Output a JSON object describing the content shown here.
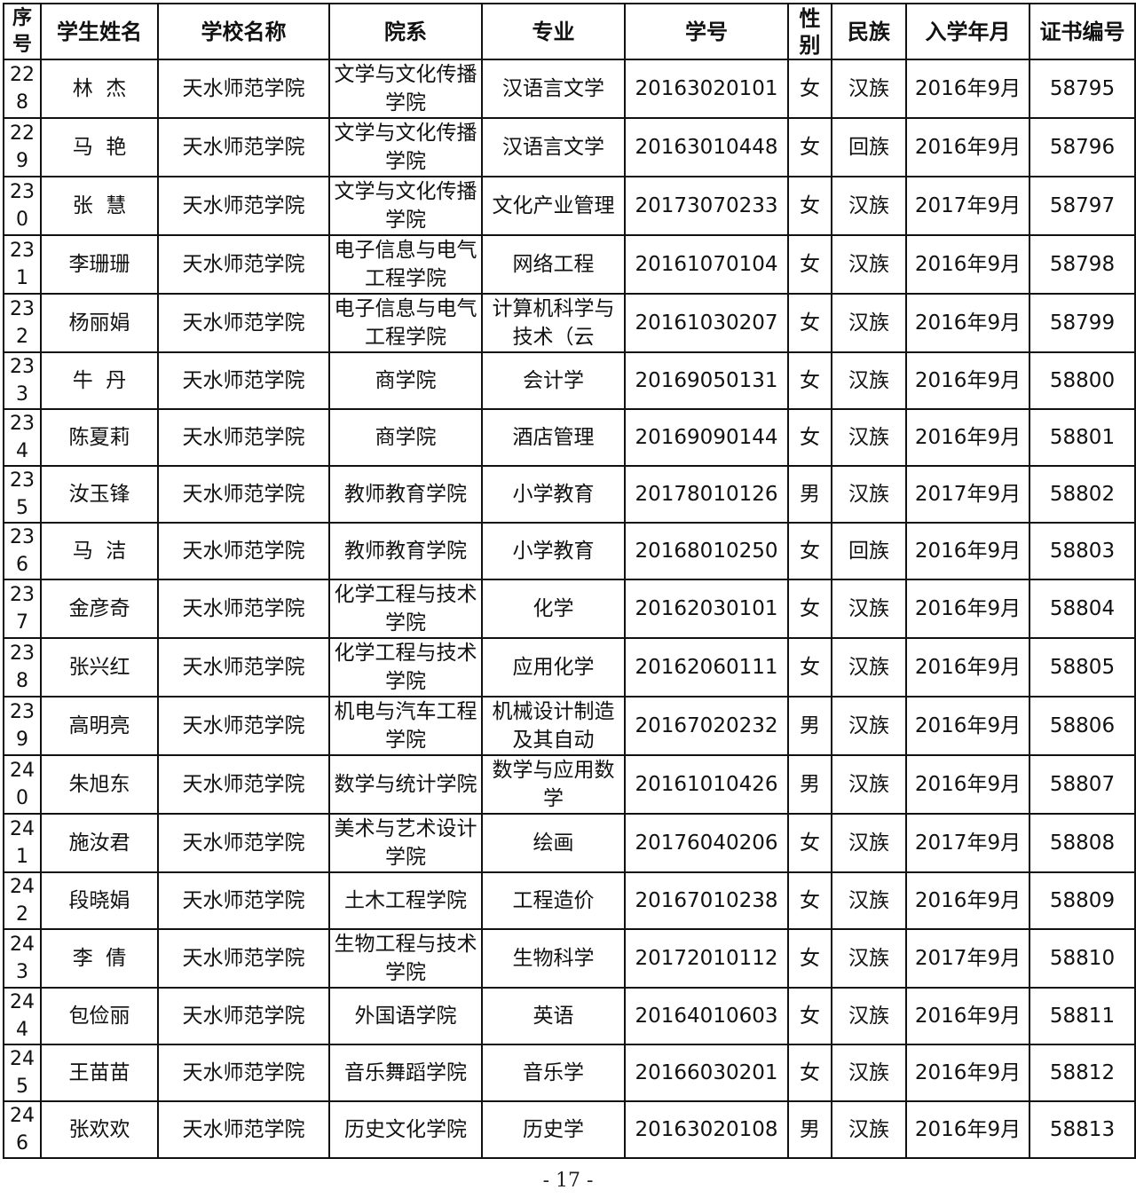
{
  "headers": [
    "序号",
    "学生姓名",
    "学校名称",
    "院系",
    "专业",
    "学号",
    "性别",
    "民族",
    "入学年月",
    "证书编号"
  ],
  "rows": [
    [
      "228",
      "林  杰",
      "天水师范学院",
      "文学与文化传播学院",
      "汉语言文学",
      "20163020101",
      "女",
      "汉族",
      "2016年9月",
      "58795"
    ],
    [
      "229",
      "马  艳",
      "天水师范学院",
      "文学与文化传播学院",
      "汉语言文学",
      "20163010448",
      "女",
      "回族",
      "2016年9月",
      "58796"
    ],
    [
      "230",
      "张  慧",
      "天水师范学院",
      "文学与文化传播学院",
      "文化产业管理",
      "20173070233",
      "女",
      "汉族",
      "2017年9月",
      "58797"
    ],
    [
      "231",
      "李珊珊",
      "天水师范学院",
      "电子信息与电气工程学院",
      "网络工程",
      "20161070104",
      "女",
      "汉族",
      "2016年9月",
      "58798"
    ],
    [
      "232",
      "杨丽娟",
      "天水师范学院",
      "电子信息与电气工程学院",
      "计算机科学与技术（云",
      "20161030207",
      "女",
      "汉族",
      "2016年9月",
      "58799"
    ],
    [
      "233",
      "牛  丹",
      "天水师范学院",
      "商学院",
      "会计学",
      "20169050131",
      "女",
      "汉族",
      "2016年9月",
      "58800"
    ],
    [
      "234",
      "陈夏莉",
      "天水师范学院",
      "商学院",
      "酒店管理",
      "20169090144",
      "女",
      "汉族",
      "2016年9月",
      "58801"
    ],
    [
      "235",
      "汝玉锋",
      "天水师范学院",
      "教师教育学院",
      "小学教育",
      "20178010126",
      "男",
      "汉族",
      "2017年9月",
      "58802"
    ],
    [
      "236",
      "马  洁",
      "天水师范学院",
      "教师教育学院",
      "小学教育",
      "20168010250",
      "女",
      "回族",
      "2016年9月",
      "58803"
    ],
    [
      "237",
      "金彦奇",
      "天水师范学院",
      "化学工程与技术学院",
      "化学",
      "20162030101",
      "女",
      "汉族",
      "2016年9月",
      "58804"
    ],
    [
      "238",
      "张兴红",
      "天水师范学院",
      "化学工程与技术学院",
      "应用化学",
      "20162060111",
      "女",
      "汉族",
      "2016年9月",
      "58805"
    ],
    [
      "239",
      "高明亮",
      "天水师范学院",
      "机电与汽车工程学院",
      "机械设计制造及其自动",
      "20167020232",
      "男",
      "汉族",
      "2016年9月",
      "58806"
    ],
    [
      "240",
      "朱旭东",
      "天水师范学院",
      "数学与统计学院",
      "数学与应用数学",
      "20161010426",
      "男",
      "汉族",
      "2016年9月",
      "58807"
    ],
    [
      "241",
      "施汝君",
      "天水师范学院",
      "美术与艺术设计学院",
      "绘画",
      "20176040206",
      "女",
      "汉族",
      "2017年9月",
      "58808"
    ],
    [
      "242",
      "段晓娟",
      "天水师范学院",
      "土木工程学院",
      "工程造价",
      "20167010238",
      "女",
      "汉族",
      "2016年9月",
      "58809"
    ],
    [
      "243",
      "李  倩",
      "天水师范学院",
      "生物工程与技术学院",
      "生物科学",
      "20172010112",
      "女",
      "汉族",
      "2017年9月",
      "58810"
    ],
    [
      "244",
      "包俭丽",
      "天水师范学院",
      "外国语学院",
      "英语",
      "20164010603",
      "女",
      "汉族",
      "2016年9月",
      "58811"
    ],
    [
      "245",
      "王苗苗",
      "天水师范学院",
      "音乐舞蹈学院",
      "音乐学",
      "20166030201",
      "女",
      "汉族",
      "2016年9月",
      "58812"
    ],
    [
      "246",
      "张欢欢",
      "天水师范学院",
      "历史文化学院",
      "历史学",
      "20163020108",
      "男",
      "汉族",
      "2016年9月",
      "58813"
    ]
  ],
  "footer": "- 17 -"
}
